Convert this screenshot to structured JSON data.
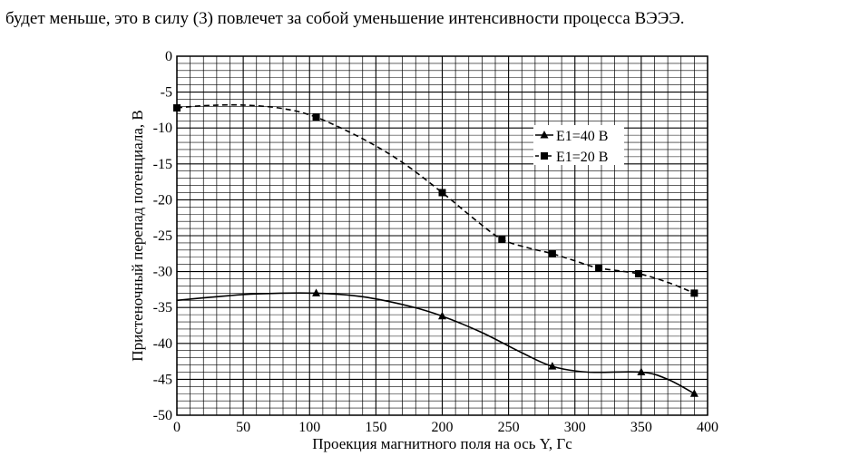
{
  "page_text": "будет меньше, это в силу (3) повлечет за собой уменьшение интенсивности процесса ВЭЭЭ.",
  "chart_data": {
    "type": "line",
    "title": "",
    "xlabel": "Проекция магнитного поля на ось Y, Гс",
    "ylabel": "Пристеночный перепад потенциала, В",
    "xlim": [
      0,
      400
    ],
    "ylim": [
      -50,
      0
    ],
    "x_ticks": [
      0,
      50,
      100,
      150,
      200,
      250,
      300,
      350,
      400
    ],
    "y_ticks": [
      0,
      -5,
      -10,
      -15,
      -20,
      -25,
      -30,
      -35,
      -40,
      -45,
      -50
    ],
    "grid": true,
    "legend_position": "right-center",
    "series": [
      {
        "name": "E1=40 В",
        "marker": "triangle",
        "line_style": "solid",
        "color": "#000000",
        "x": [
          105,
          200,
          283,
          350,
          390
        ],
        "y": [
          -33,
          -36.2,
          -43.2,
          -44,
          -47
        ],
        "curve_x": [
          0,
          30,
          60,
          105,
          140,
          175,
          200,
          230,
          260,
          283,
          310,
          350,
          370,
          390
        ],
        "curve_y": [
          -34,
          -33.5,
          -33.1,
          -33,
          -33.5,
          -34.8,
          -36.2,
          -38.5,
          -41.3,
          -43.2,
          -44,
          -44,
          -45,
          -47
        ]
      },
      {
        "name": "E1=20 В",
        "marker": "square",
        "line_style": "dashed",
        "color": "#000000",
        "x": [
          0,
          105,
          200,
          245,
          283,
          318,
          348,
          390
        ],
        "y": [
          -7.2,
          -8.5,
          -19,
          -25.5,
          -27.5,
          -29.5,
          -30.3,
          -33
        ],
        "curve_x": [
          0,
          20,
          50,
          80,
          105,
          140,
          170,
          200,
          225,
          245,
          265,
          283,
          300,
          318,
          348,
          370,
          390
        ],
        "curve_y": [
          -7.2,
          -6.9,
          -6.8,
          -7.3,
          -8.5,
          -11.5,
          -14.8,
          -19,
          -22.8,
          -25.5,
          -26.7,
          -27.5,
          -28.5,
          -29.5,
          -30.3,
          -31.5,
          -33
        ]
      }
    ]
  }
}
